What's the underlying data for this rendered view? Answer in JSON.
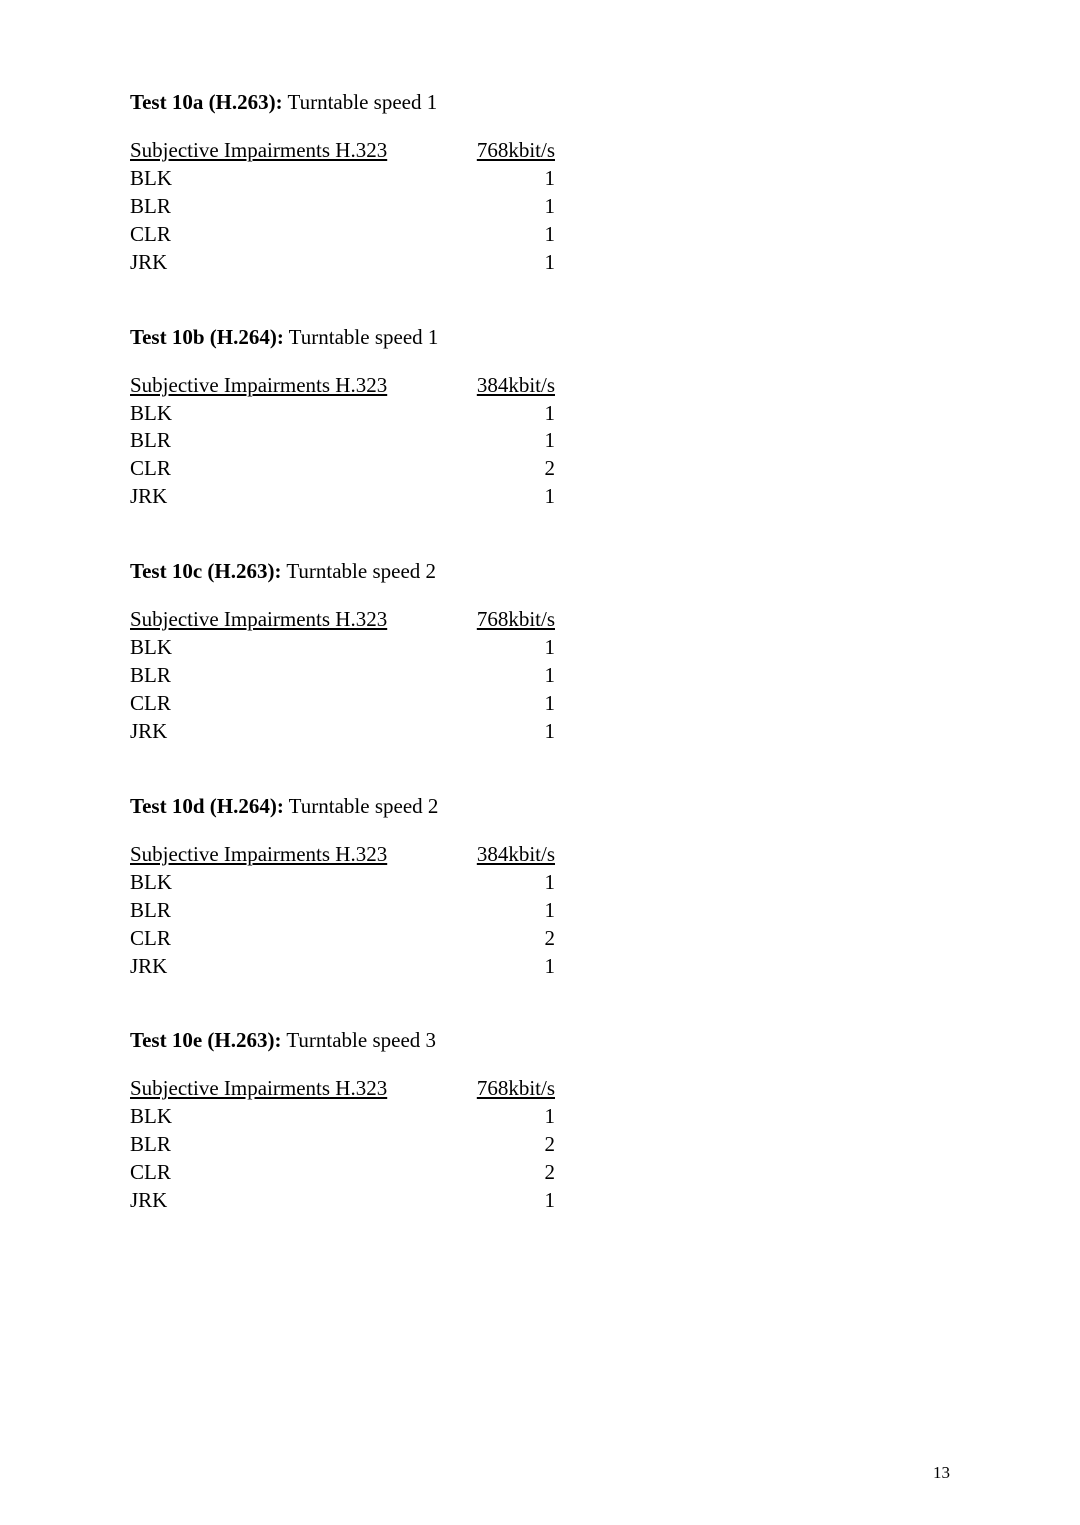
{
  "tests": [
    {
      "titleBold": "Test 10a (H.263):",
      "titleRest": " Turntable speed 1",
      "header": "Subjective Impairments H.323",
      "rateLabel": "768kbit/s",
      "rows": [
        {
          "label": "BLK",
          "value": "1"
        },
        {
          "label": "BLR",
          "value": "1"
        },
        {
          "label": "CLR",
          "value": "1"
        },
        {
          "label": "JRK",
          "value": "1"
        }
      ]
    },
    {
      "titleBold": "Test 10b (H.264):",
      "titleRest": " Turntable speed 1",
      "header": "Subjective Impairments H.323",
      "rateLabel": "384kbit/s",
      "rows": [
        {
          "label": "BLK",
          "value": "1"
        },
        {
          "label": "BLR",
          "value": "1"
        },
        {
          "label": "CLR",
          "value": "2"
        },
        {
          "label": "JRK",
          "value": "1"
        }
      ]
    },
    {
      "titleBold": "Test 10c (H.263):",
      "titleRest": " Turntable speed 2",
      "header": "Subjective Impairments H.323",
      "rateLabel": "768kbit/s",
      "rows": [
        {
          "label": "BLK",
          "value": "1"
        },
        {
          "label": "BLR",
          "value": "1"
        },
        {
          "label": "CLR",
          "value": "1"
        },
        {
          "label": "JRK",
          "value": "1"
        }
      ]
    },
    {
      "titleBold": "Test 10d (H.264):",
      "titleRest": " Turntable speed 2",
      "header": "Subjective Impairments H.323",
      "rateLabel": "384kbit/s",
      "rows": [
        {
          "label": "BLK",
          "value": "1"
        },
        {
          "label": "BLR",
          "value": "1"
        },
        {
          "label": "CLR",
          "value": "2"
        },
        {
          "label": "JRK",
          "value": "1"
        }
      ]
    },
    {
      "titleBold": "Test 10e (H.263):",
      "titleRest": " Turntable speed 3",
      "header": "Subjective Impairments H.323",
      "rateLabel": "768kbit/s",
      "rows": [
        {
          "label": "BLK",
          "value": "1"
        },
        {
          "label": "BLR",
          "value": "2"
        },
        {
          "label": "CLR",
          "value": "2"
        },
        {
          "label": "JRK",
          "value": "1"
        }
      ]
    }
  ],
  "pageNumber": "13"
}
